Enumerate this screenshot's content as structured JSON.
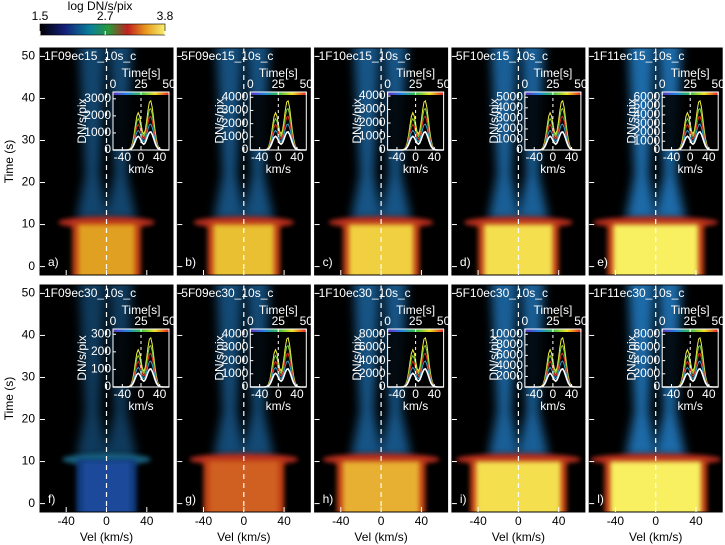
{
  "colorbar": {
    "label": "log DN/s/pix",
    "lim": [
      1.5,
      3.8
    ],
    "ticks": [
      1.5,
      2.7,
      3.8
    ]
  },
  "chart_data": [
    {
      "type": "heatmap",
      "title": "1F09ec15_10s_c",
      "label": "a)",
      "ylabel": "Time (s)",
      "xlim": [
        -66,
        66
      ],
      "xticks": [
        -40,
        0,
        40
      ],
      "ylim": [
        -2,
        52
      ],
      "yticks": [
        0,
        10,
        20,
        30,
        40,
        50
      ],
      "inset": {
        "toplabel": "Time[s]",
        "xlabel": "km/s",
        "ylabel": "DN/s/pix",
        "toplim": [
          0,
          50
        ],
        "topticks": [
          0,
          25,
          50
        ],
        "xlim": [
          -60,
          60
        ],
        "xticks": [
          -40,
          0,
          40
        ],
        "ylim": [
          0,
          3400
        ],
        "yticks": [
          0,
          1000,
          2000,
          3000
        ]
      }
    },
    {
      "type": "heatmap",
      "title": "5F09ec15_10s_c",
      "label": "b)",
      "xlim": [
        -66,
        66
      ],
      "xticks": [
        -40,
        0,
        40
      ],
      "ylim": [
        -2,
        52
      ],
      "yticks": [
        0,
        10,
        20,
        30,
        40,
        50
      ],
      "inset": {
        "toplabel": "Time[s]",
        "xlabel": "km/s",
        "ylabel": "DN/s/pix",
        "toplim": [
          0,
          50
        ],
        "topticks": [
          0,
          25,
          50
        ],
        "xlim": [
          -60,
          60
        ],
        "xticks": [
          -40,
          0,
          40
        ],
        "ylim": [
          0,
          4400
        ],
        "yticks": [
          0,
          1000,
          2000,
          3000,
          4000
        ]
      }
    },
    {
      "type": "heatmap",
      "title": "1F10ec15_10s_c",
      "label": "c)",
      "xlim": [
        -66,
        66
      ],
      "xticks": [
        -40,
        0,
        40
      ],
      "ylim": [
        -2,
        52
      ],
      "yticks": [
        0,
        10,
        20,
        30,
        40,
        50
      ],
      "inset": {
        "toplabel": "Time[s]",
        "xlabel": "km/s",
        "ylabel": "DN/s/pix",
        "toplim": [
          0,
          50
        ],
        "topticks": [
          0,
          25,
          50
        ],
        "xlim": [
          -60,
          60
        ],
        "xticks": [
          -40,
          0,
          40
        ],
        "ylim": [
          0,
          4300
        ],
        "yticks": [
          0,
          1000,
          2000,
          3000,
          4000
        ]
      }
    },
    {
      "type": "heatmap",
      "title": "5F10ec15_10s_c",
      "label": "d)",
      "xlim": [
        -66,
        66
      ],
      "xticks": [
        -40,
        0,
        40
      ],
      "ylim": [
        -2,
        52
      ],
      "yticks": [
        0,
        10,
        20,
        30,
        40,
        50
      ],
      "inset": {
        "toplabel": "Time[s]",
        "xlabel": "km/s",
        "ylabel": "DN/s/pix",
        "toplim": [
          0,
          50
        ],
        "topticks": [
          0,
          25,
          50
        ],
        "xlim": [
          -60,
          60
        ],
        "xticks": [
          -40,
          0,
          40
        ],
        "ylim": [
          0,
          5500
        ],
        "yticks": [
          0,
          1000,
          2000,
          3000,
          4000,
          5000
        ]
      }
    },
    {
      "type": "heatmap",
      "title": "1F11ec15_10s_c",
      "label": "e)",
      "xlim": [
        -66,
        66
      ],
      "xticks": [
        -40,
        0,
        40
      ],
      "ylim": [
        -2,
        52
      ],
      "yticks": [
        0,
        10,
        20,
        30,
        40,
        50
      ],
      "inset": {
        "toplabel": "Time[s]",
        "xlabel": "km/s",
        "ylabel": "DN/s/pix",
        "toplim": [
          0,
          50
        ],
        "topticks": [
          0,
          25,
          50
        ],
        "xlim": [
          -60,
          60
        ],
        "xticks": [
          -40,
          0,
          40
        ],
        "ylim": [
          0,
          6600
        ],
        "yticks": [
          0,
          1000,
          2000,
          3000,
          4000,
          5000,
          6000
        ]
      }
    },
    {
      "type": "heatmap",
      "title": "1F09ec30_10s_c",
      "label": "f)",
      "xlabel": "Vel (km/s)",
      "ylabel": "Time (s)",
      "xlim": [
        -66,
        66
      ],
      "xticks": [
        -40,
        0,
        40
      ],
      "ylim": [
        -2,
        52
      ],
      "yticks": [
        0,
        10,
        20,
        30,
        40,
        50
      ],
      "inset": {
        "toplabel": "Time[s]",
        "xlabel": "km/s",
        "ylabel": "DN/s/pix",
        "toplim": [
          0,
          50
        ],
        "topticks": [
          0,
          25,
          50
        ],
        "xlim": [
          -60,
          60
        ],
        "xticks": [
          -40,
          0,
          40
        ],
        "ylim": [
          0,
          330
        ],
        "yticks": [
          0,
          100,
          200,
          300
        ]
      }
    },
    {
      "type": "heatmap",
      "title": "5F09ec30_10s_c",
      "label": "g)",
      "xlabel": "Vel (km/s)",
      "xlim": [
        -66,
        66
      ],
      "xticks": [
        -40,
        0,
        40
      ],
      "ylim": [
        -2,
        52
      ],
      "yticks": [
        0,
        10,
        20,
        30,
        40,
        50
      ],
      "inset": {
        "toplabel": "Time[s]",
        "xlabel": "km/s",
        "ylabel": "DN/s/pix",
        "toplim": [
          0,
          50
        ],
        "topticks": [
          0,
          25,
          50
        ],
        "xlim": [
          -60,
          60
        ],
        "xticks": [
          -40,
          0,
          40
        ],
        "ylim": [
          0,
          4400
        ],
        "yticks": [
          0,
          1000,
          2000,
          3000,
          4000
        ]
      }
    },
    {
      "type": "heatmap",
      "title": "1F10ec30_10s_c",
      "label": "h)",
      "xlabel": "Vel (km/s)",
      "xlim": [
        -66,
        66
      ],
      "xticks": [
        -40,
        0,
        40
      ],
      "ylim": [
        -2,
        52
      ],
      "yticks": [
        0,
        10,
        20,
        30,
        40,
        50
      ],
      "inset": {
        "toplabel": "Time[s]",
        "xlabel": "km/s",
        "ylabel": "DN/s/pix",
        "toplim": [
          0,
          50
        ],
        "topticks": [
          0,
          25,
          50
        ],
        "xlim": [
          -60,
          60
        ],
        "xticks": [
          -40,
          0,
          40
        ],
        "ylim": [
          0,
          8800
        ],
        "yticks": [
          0,
          2000,
          4000,
          6000,
          8000
        ]
      }
    },
    {
      "type": "heatmap",
      "title": "5F10ec30_10s_c",
      "label": "i)",
      "xlabel": "Vel (km/s)",
      "xlim": [
        -66,
        66
      ],
      "xticks": [
        -40,
        0,
        40
      ],
      "ylim": [
        -2,
        52
      ],
      "yticks": [
        0,
        10,
        20,
        30,
        40,
        50
      ],
      "inset": {
        "toplabel": "Time[s]",
        "xlabel": "km/s",
        "ylabel": "DN/s/pix",
        "toplim": [
          0,
          50
        ],
        "topticks": [
          0,
          25,
          50
        ],
        "xlim": [
          -60,
          60
        ],
        "xticks": [
          -40,
          0,
          40
        ],
        "ylim": [
          0,
          11000
        ],
        "yticks": [
          0,
          2000,
          4000,
          6000,
          8000,
          10000
        ]
      }
    },
    {
      "type": "heatmap",
      "title": "1F11ec30_10s_c",
      "label": "l)",
      "xlabel": "Vel (km/s)",
      "xlim": [
        -66,
        66
      ],
      "xticks": [
        -40,
        0,
        40
      ],
      "ylim": [
        -2,
        52
      ],
      "yticks": [
        0,
        10,
        20,
        30,
        40,
        50
      ],
      "inset": {
        "toplabel": "Time[s]",
        "xlabel": "km/s",
        "ylabel": "DN/s/pix",
        "toplim": [
          0,
          50
        ],
        "topticks": [
          0,
          25,
          50
        ],
        "xlim": [
          -60,
          60
        ],
        "xticks": [
          -40,
          0,
          40
        ],
        "ylim": [
          0,
          8800
        ],
        "yticks": [
          0,
          2000,
          4000,
          6000,
          8000
        ]
      }
    }
  ]
}
